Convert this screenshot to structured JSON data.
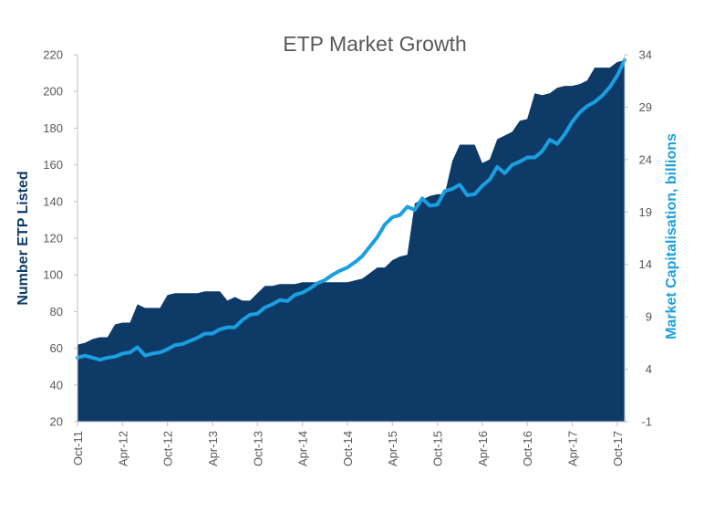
{
  "chart_data": {
    "type": "area+line",
    "title": "ETP Market Growth",
    "xlabel": "",
    "ylabel_left": "Number ETP Listed",
    "ylabel_right": "Market Capitalisation, billions",
    "ylim_left": [
      20,
      220
    ],
    "yticks_left": [
      "20",
      "40",
      "60",
      "80",
      "100",
      "120",
      "140",
      "160",
      "180",
      "200",
      "220"
    ],
    "ylim_right": [
      -1,
      34
    ],
    "yticks_right": [
      "-1",
      "4",
      "9",
      "14",
      "19",
      "24",
      "29",
      "34"
    ],
    "x_tick_labels": [
      "Oct-11",
      "Apr-12",
      "Oct-12",
      "Apr-13",
      "Oct-13",
      "Apr-14",
      "Oct-14",
      "Apr-15",
      "Oct-15",
      "Apr-16",
      "Oct-16",
      "Apr-17",
      "Oct-17"
    ],
    "months_per_tick": 6,
    "grid": false,
    "colors": {
      "area": "#0e3a68",
      "line": "#1a9fe0",
      "left_label": "#0e3a68",
      "right_label": "#1a9fe0",
      "axis": "#bfbfbf",
      "text": "#595959"
    },
    "series": [
      {
        "name": "Number ETP Listed",
        "axis": "left",
        "kind": "area",
        "values": [
          62,
          63,
          65,
          66,
          66,
          73,
          74,
          74,
          84,
          82,
          82,
          82,
          89,
          90,
          90,
          90,
          90,
          91,
          91,
          91,
          86,
          88,
          86,
          86,
          90,
          94,
          94,
          95,
          95,
          95,
          96,
          96,
          96,
          96,
          96,
          96,
          96,
          97,
          98,
          101,
          104,
          104,
          108,
          110,
          111,
          139,
          141,
          143,
          144,
          144,
          162,
          171,
          171,
          171,
          161,
          163,
          174,
          176,
          178,
          184,
          185,
          199,
          198,
          199,
          202,
          203,
          203,
          204,
          206,
          213,
          213,
          213,
          216,
          217
        ]
      },
      {
        "name": "Market Capitalisation, billions",
        "axis": "right",
        "kind": "line",
        "values": [
          5.1,
          5.3,
          5.1,
          4.9,
          5.1,
          5.2,
          5.5,
          5.6,
          6.1,
          5.3,
          5.5,
          5.6,
          5.9,
          6.3,
          6.4,
          6.7,
          7.0,
          7.4,
          7.4,
          7.8,
          8.0,
          8.0,
          8.7,
          9.2,
          9.3,
          9.9,
          10.2,
          10.6,
          10.5,
          11.1,
          11.3,
          11.7,
          12.2,
          12.5,
          13.0,
          13.4,
          13.7,
          14.2,
          14.8,
          15.7,
          16.6,
          17.8,
          18.5,
          18.7,
          19.5,
          19.2,
          20.3,
          19.6,
          19.7,
          21.0,
          21.2,
          21.6,
          20.6,
          20.7,
          21.5,
          22.1,
          23.3,
          22.7,
          23.5,
          23.8,
          24.2,
          24.2,
          24.8,
          25.9,
          25.5,
          26.4,
          27.6,
          28.5,
          29.1,
          29.5,
          30.1,
          30.9,
          32.0,
          33.5
        ]
      }
    ]
  }
}
